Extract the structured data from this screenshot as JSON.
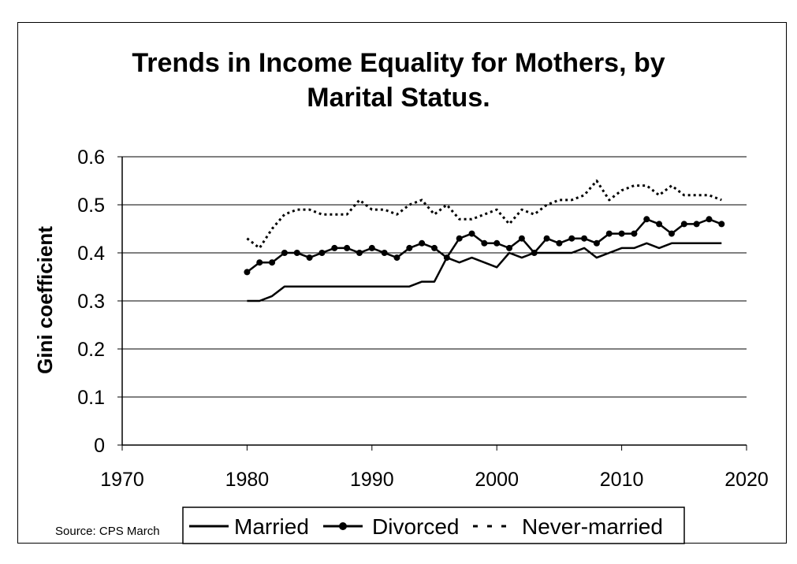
{
  "chart_data": {
    "type": "line",
    "title": "Trends in Income Equality for Mothers, by Marital Status.",
    "xlabel": "",
    "ylabel": "Gini coefficient",
    "xlim": [
      1970,
      2020
    ],
    "ylim": [
      0,
      0.6
    ],
    "x_ticks": [
      "1970",
      "1980",
      "1990",
      "2000",
      "2010",
      "2020"
    ],
    "y_ticks": [
      "0",
      "0.1",
      "0.2",
      "0.3",
      "0.4",
      "0.5",
      "0.6"
    ],
    "grid": "horizontal",
    "legend": "bottom",
    "series": [
      {
        "name": "Married",
        "style": "solid",
        "color": "#000000",
        "x": [
          1980,
          1981,
          1982,
          1983,
          1984,
          1985,
          1986,
          1987,
          1988,
          1989,
          1990,
          1991,
          1992,
          1993,
          1994,
          1995,
          1996,
          1997,
          1998,
          1999,
          2000,
          2001,
          2002,
          2003,
          2004,
          2005,
          2006,
          2007,
          2008,
          2009,
          2010,
          2011,
          2012,
          2013,
          2014,
          2015,
          2016,
          2017,
          2018
        ],
        "values": [
          0.3,
          0.3,
          0.31,
          0.33,
          0.33,
          0.33,
          0.33,
          0.33,
          0.33,
          0.33,
          0.33,
          0.33,
          0.33,
          0.33,
          0.34,
          0.34,
          0.39,
          0.38,
          0.39,
          0.38,
          0.37,
          0.4,
          0.39,
          0.4,
          0.4,
          0.4,
          0.4,
          0.41,
          0.39,
          0.4,
          0.41,
          0.41,
          0.42,
          0.41,
          0.42,
          0.42,
          0.42,
          0.42,
          0.42
        ]
      },
      {
        "name": "Divorced",
        "style": "solid-markers",
        "color": "#000000",
        "x": [
          1980,
          1981,
          1982,
          1983,
          1984,
          1985,
          1986,
          1987,
          1988,
          1989,
          1990,
          1991,
          1992,
          1993,
          1994,
          1995,
          1996,
          1997,
          1998,
          1999,
          2000,
          2001,
          2002,
          2003,
          2004,
          2005,
          2006,
          2007,
          2008,
          2009,
          2010,
          2011,
          2012,
          2013,
          2014,
          2015,
          2016,
          2017,
          2018
        ],
        "values": [
          0.36,
          0.38,
          0.38,
          0.4,
          0.4,
          0.39,
          0.4,
          0.41,
          0.41,
          0.4,
          0.41,
          0.4,
          0.39,
          0.41,
          0.42,
          0.41,
          0.39,
          0.43,
          0.44,
          0.42,
          0.42,
          0.41,
          0.43,
          0.4,
          0.43,
          0.42,
          0.43,
          0.43,
          0.42,
          0.44,
          0.44,
          0.44,
          0.47,
          0.46,
          0.44,
          0.46,
          0.46,
          0.47,
          0.46
        ]
      },
      {
        "name": "Never-married",
        "style": "dashed",
        "color": "#000000",
        "x": [
          1980,
          1981,
          1982,
          1983,
          1984,
          1985,
          1986,
          1987,
          1988,
          1989,
          1990,
          1991,
          1992,
          1993,
          1994,
          1995,
          1996,
          1997,
          1998,
          1999,
          2000,
          2001,
          2002,
          2003,
          2004,
          2005,
          2006,
          2007,
          2008,
          2009,
          2010,
          2011,
          2012,
          2013,
          2014,
          2015,
          2016,
          2017,
          2018
        ],
        "values": [
          0.43,
          0.41,
          0.45,
          0.48,
          0.49,
          0.49,
          0.48,
          0.48,
          0.48,
          0.51,
          0.49,
          0.49,
          0.48,
          0.5,
          0.51,
          0.48,
          0.5,
          0.47,
          0.47,
          0.48,
          0.49,
          0.46,
          0.49,
          0.48,
          0.5,
          0.51,
          0.51,
          0.52,
          0.55,
          0.51,
          0.53,
          0.54,
          0.54,
          0.52,
          0.54,
          0.52,
          0.52,
          0.52,
          0.51
        ]
      }
    ]
  },
  "source": "Source: CPS March"
}
